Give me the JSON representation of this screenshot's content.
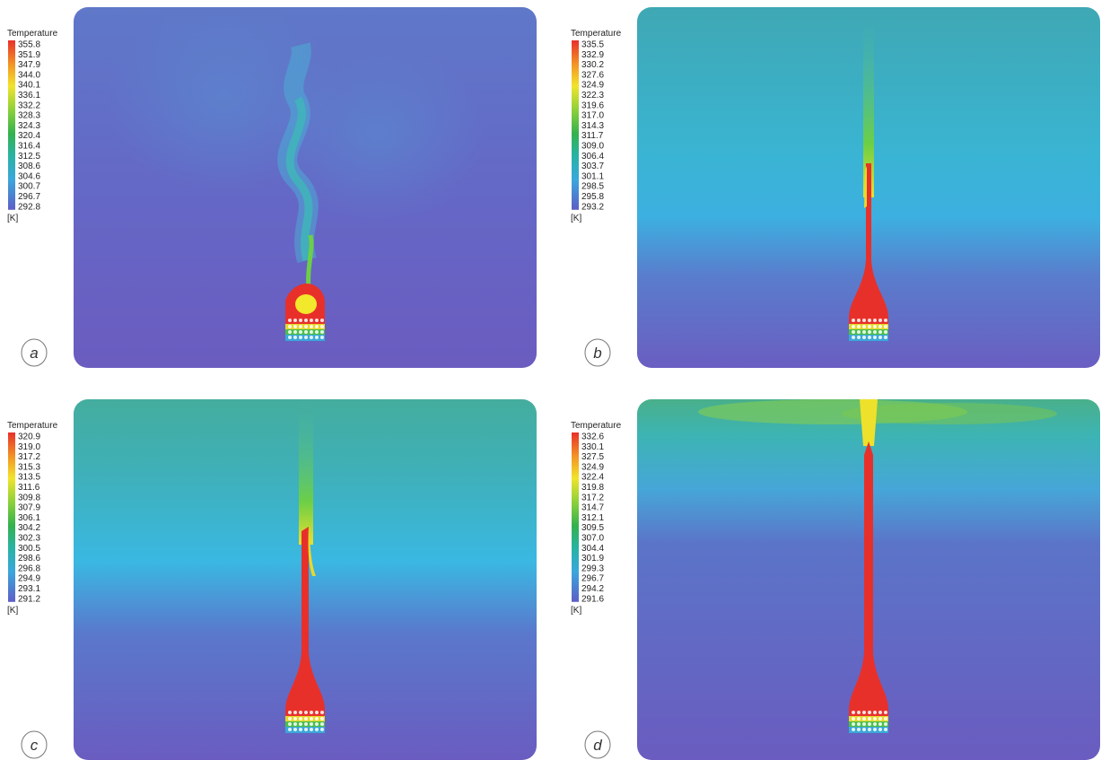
{
  "panels": [
    {
      "label": "a",
      "legend": {
        "title": "Temperature",
        "unit": "[K]",
        "values": [
          "355.8",
          "351.9",
          "347.9",
          "344.0",
          "340.1",
          "336.1",
          "332.2",
          "328.3",
          "324.3",
          "320.4",
          "316.4",
          "312.5",
          "308.6",
          "304.6",
          "300.7",
          "296.7",
          "292.8"
        ]
      }
    },
    {
      "label": "b",
      "legend": {
        "title": "Temperature",
        "unit": "[K]",
        "values": [
          "335.5",
          "332.9",
          "330.2",
          "327.6",
          "324.9",
          "322.3",
          "319.6",
          "317.0",
          "314.3",
          "311.7",
          "309.0",
          "306.4",
          "303.7",
          "301.1",
          "298.5",
          "295.8",
          "293.2"
        ]
      }
    },
    {
      "label": "c",
      "legend": {
        "title": "Temperature",
        "unit": "[K]",
        "values": [
          "320.9",
          "319.0",
          "317.2",
          "315.3",
          "313.5",
          "311.6",
          "309.8",
          "307.9",
          "306.1",
          "304.2",
          "302.3",
          "300.5",
          "298.6",
          "296.8",
          "294.9",
          "293.1",
          "291.2"
        ]
      }
    },
    {
      "label": "d",
      "legend": {
        "title": "Temperature",
        "unit": "[K]",
        "values": [
          "332.6",
          "330.1",
          "327.5",
          "324.9",
          "322.4",
          "319.8",
          "317.2",
          "314.7",
          "312.1",
          "309.5",
          "307.0",
          "304.4",
          "301.9",
          "299.3",
          "296.7",
          "294.2",
          "291.6"
        ]
      }
    }
  ]
}
